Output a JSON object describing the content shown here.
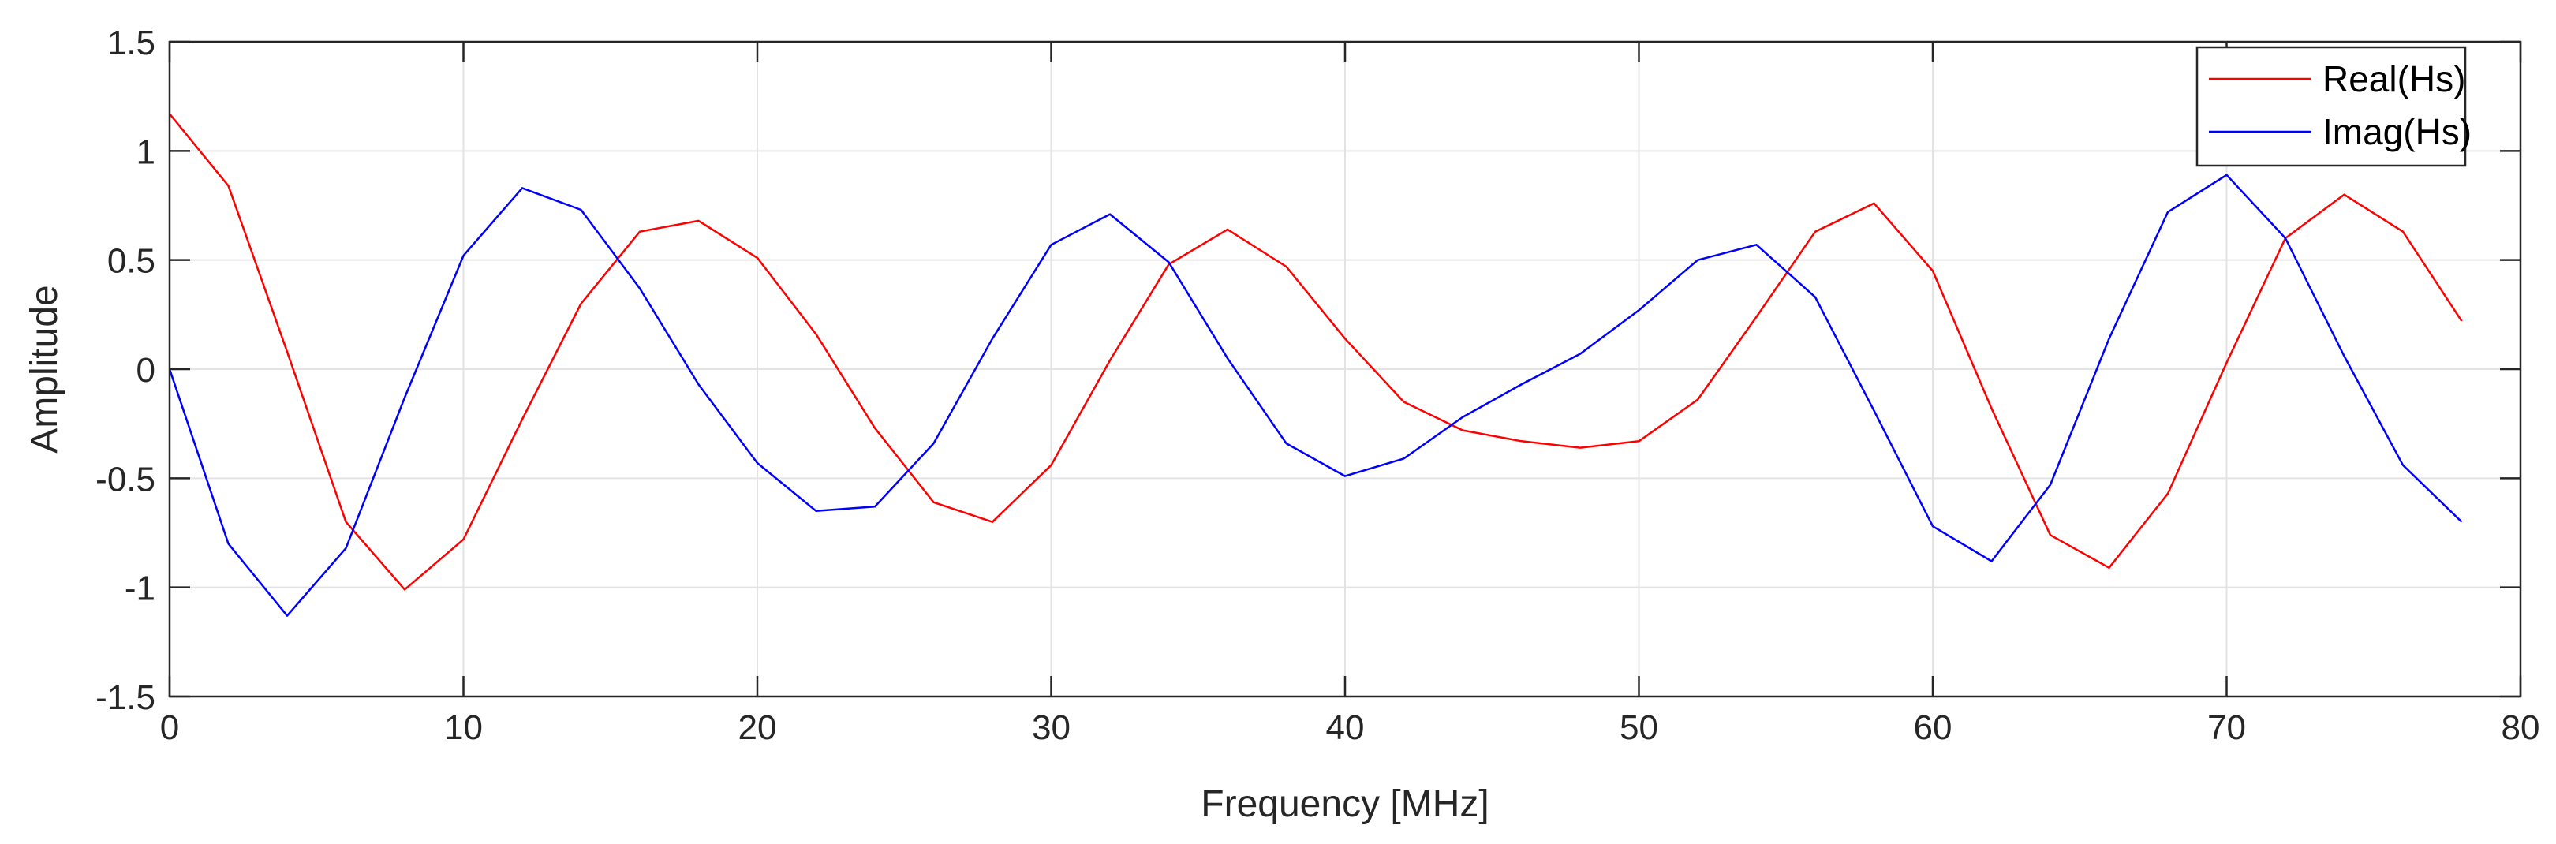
{
  "chart_data": {
    "type": "line",
    "xlabel": "Frequency  [MHz]",
    "ylabel": "Amplitude",
    "xlim": [
      0,
      80
    ],
    "ylim": [
      -1.5,
      1.5
    ],
    "xticks": [
      0,
      10,
      20,
      30,
      40,
      50,
      60,
      70,
      80
    ],
    "xtick_labels": [
      "0",
      "10",
      "20",
      "30",
      "40",
      "50",
      "60",
      "70",
      "80"
    ],
    "yticks": [
      1.5,
      1,
      0.5,
      0,
      -0.5,
      -1,
      -1.5
    ],
    "ytick_labels": [
      "1.5",
      "1",
      "0.5",
      "0",
      "-0.5",
      "-1",
      "-1.5"
    ],
    "grid": true,
    "legend_position": "top-right",
    "x": [
      0,
      2,
      4,
      6,
      8,
      10,
      12,
      14,
      16,
      18,
      20,
      22,
      24,
      26,
      28,
      30,
      32,
      34,
      36,
      38,
      40,
      42,
      44,
      46,
      48,
      50,
      52,
      54,
      56,
      58,
      60,
      62,
      64,
      66,
      68,
      70,
      72,
      74,
      76,
      78
    ],
    "series": [
      {
        "name": "Real(Hs)",
        "color": "#ff0000",
        "values": [
          1.17,
          0.84,
          0.08,
          -0.7,
          -1.01,
          -0.78,
          -0.23,
          0.3,
          0.63,
          0.68,
          0.51,
          0.16,
          -0.27,
          -0.61,
          -0.7,
          -0.44,
          0.04,
          0.48,
          0.64,
          0.47,
          0.14,
          -0.15,
          -0.28,
          -0.33,
          -0.36,
          -0.33,
          -0.14,
          0.24,
          0.63,
          0.76,
          0.45,
          -0.18,
          -0.76,
          -0.91,
          -0.57,
          0.03,
          0.6,
          0.8,
          0.63,
          0.22
        ]
      },
      {
        "name": "Imag(Hs)",
        "color": "#0000ff",
        "values": [
          0.0,
          -0.8,
          -1.13,
          -0.82,
          -0.13,
          0.52,
          0.83,
          0.73,
          0.37,
          -0.07,
          -0.43,
          -0.65,
          -0.63,
          -0.34,
          0.14,
          0.57,
          0.71,
          0.49,
          0.05,
          -0.34,
          -0.49,
          -0.41,
          -0.22,
          -0.07,
          0.07,
          0.27,
          0.5,
          0.57,
          0.33,
          -0.19,
          -0.72,
          -0.88,
          -0.53,
          0.14,
          0.72,
          0.89,
          0.6,
          0.06,
          -0.44,
          -0.7
        ]
      }
    ]
  }
}
